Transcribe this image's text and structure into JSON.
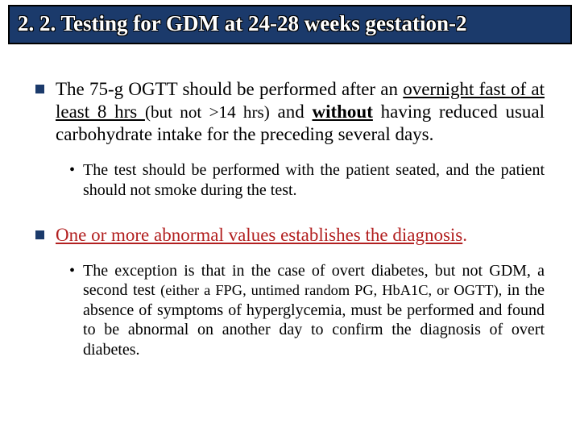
{
  "title": "2. 2. Testing for GDM at 24-28 weeks gestation-2",
  "colors": {
    "title_bg": "#1b3a6b",
    "title_border": "#000000",
    "title_text": "#ffffff",
    "bullet_square": "#1b3a6b",
    "body_text": "#000000",
    "highlight_text": "#b22020",
    "background": "#ffffff"
  },
  "typography": {
    "title_fontsize": 27,
    "lvl1_fontsize": 23,
    "lvl2_fontsize": 20,
    "font_family": "Times New Roman"
  },
  "bullets": {
    "p1": {
      "t1": "The 75-g OGTT should be performed after an ",
      "t2": "overnight fast of at least 8 hrs ",
      "t3": "(but not >14 hrs)",
      "t4": " and ",
      "t5": "without",
      "t6": " having reduced usual carbohydrate intake for the preceding several days."
    },
    "p1a": "The test should be performed with the patient seated, and the patient should not smoke during the test.",
    "p2": {
      "t1": "One or more abnormal values establishes the diagnosis",
      "t2": "."
    },
    "p2a": {
      "t1": "The exception is that in the case of overt diabetes, but not GDM, a second test ",
      "t2": "(either a FPG, untimed random PG, HbA1C, or OGTT),",
      "t3": " in the absence of symptoms of hyperglycemia, must be performed and found to be abnormal on another day to confirm the diagnosis of overt diabetes."
    }
  }
}
